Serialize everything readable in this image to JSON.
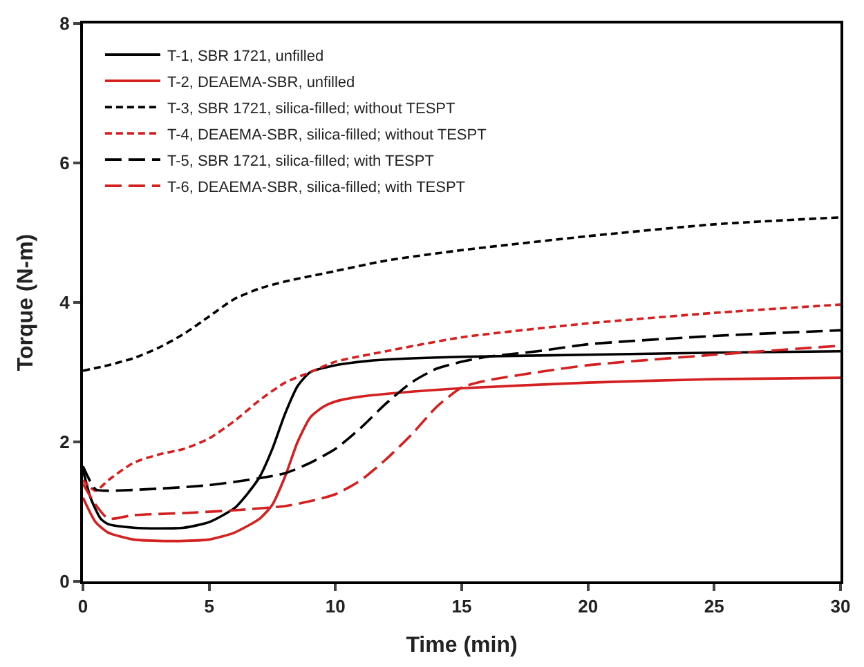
{
  "chart_data": {
    "type": "line",
    "xlabel": "Time (min)",
    "ylabel": "Torque (N-m)",
    "xlim": [
      0,
      30
    ],
    "xticks": [
      0,
      5,
      10,
      15,
      20,
      25,
      30
    ],
    "ylim": [
      0,
      8
    ],
    "yticks": [
      0,
      2,
      4,
      6,
      8
    ],
    "legend": "top left",
    "marker": "none",
    "series": [
      {
        "name": "T-1, SBR 1721, unfilled",
        "color": "#000000",
        "line_style": "solid",
        "x": [
          0,
          0.3,
          0.7,
          1,
          2,
          3,
          4,
          5,
          6,
          6.5,
          7,
          7.5,
          8,
          8.5,
          9,
          10,
          11,
          12,
          15,
          20,
          25,
          30
        ],
        "values": [
          1.6,
          1.2,
          0.9,
          0.82,
          0.77,
          0.76,
          0.77,
          0.85,
          1.05,
          1.25,
          1.5,
          1.9,
          2.4,
          2.8,
          3.0,
          3.1,
          3.15,
          3.18,
          3.22,
          3.25,
          3.28,
          3.3
        ]
      },
      {
        "name": "T-2, DEAEMA-SBR, unfilled",
        "color": "#d42020",
        "line_style": "solid",
        "x": [
          0,
          0.5,
          1,
          2,
          3,
          4,
          5,
          6,
          7,
          7.5,
          8,
          8.5,
          9,
          9.5,
          10,
          11,
          13,
          15,
          20,
          25,
          30
        ],
        "values": [
          1.2,
          0.85,
          0.7,
          0.6,
          0.58,
          0.58,
          0.6,
          0.7,
          0.9,
          1.1,
          1.5,
          2.0,
          2.35,
          2.5,
          2.58,
          2.65,
          2.72,
          2.77,
          2.85,
          2.9,
          2.92
        ]
      },
      {
        "name": "T-3, SBR 1721, silica-filled; without TESPT",
        "color": "#000000",
        "line_style": "dotted",
        "x": [
          0,
          1,
          2,
          3,
          4,
          5,
          6,
          7,
          8,
          10,
          12,
          15,
          20,
          25,
          30
        ],
        "values": [
          3.02,
          3.1,
          3.2,
          3.35,
          3.55,
          3.8,
          4.05,
          4.2,
          4.3,
          4.45,
          4.6,
          4.75,
          4.95,
          5.12,
          5.22
        ]
      },
      {
        "name": "T-4, DEAEMA-SBR, silica-filled; without TESPT",
        "color": "#d42020",
        "line_style": "dotted",
        "x": [
          0,
          0.5,
          1,
          2,
          3,
          4,
          5,
          6,
          7,
          8,
          9,
          10,
          12,
          15,
          20,
          25,
          30
        ],
        "values": [
          1.45,
          1.3,
          1.45,
          1.7,
          1.82,
          1.9,
          2.05,
          2.3,
          2.6,
          2.85,
          3.0,
          3.15,
          3.3,
          3.5,
          3.7,
          3.85,
          3.97
        ]
      },
      {
        "name": "T-5, SBR 1721, silica-filled; with TESPT",
        "color": "#000000",
        "line_style": "dashed",
        "x": [
          0,
          0.5,
          1,
          3,
          5,
          7,
          8,
          9,
          10,
          11,
          12,
          13,
          14,
          15,
          16,
          18,
          20,
          25,
          30
        ],
        "values": [
          1.65,
          1.32,
          1.3,
          1.33,
          1.38,
          1.48,
          1.55,
          1.7,
          1.9,
          2.2,
          2.55,
          2.85,
          3.05,
          3.15,
          3.22,
          3.3,
          3.4,
          3.52,
          3.6
        ]
      },
      {
        "name": "T-6, DEAEMA-SBR, silica-filled; with TESPT",
        "color": "#d42020",
        "line_style": "dashed",
        "x": [
          0,
          0.5,
          1,
          2,
          4,
          6,
          8,
          9,
          10,
          11,
          12,
          13,
          14,
          15,
          16,
          18,
          20,
          25,
          30
        ],
        "values": [
          1.4,
          1.1,
          0.9,
          0.95,
          0.98,
          1.02,
          1.08,
          1.15,
          1.25,
          1.45,
          1.75,
          2.1,
          2.5,
          2.78,
          2.88,
          3.0,
          3.1,
          3.25,
          3.38
        ]
      }
    ]
  }
}
